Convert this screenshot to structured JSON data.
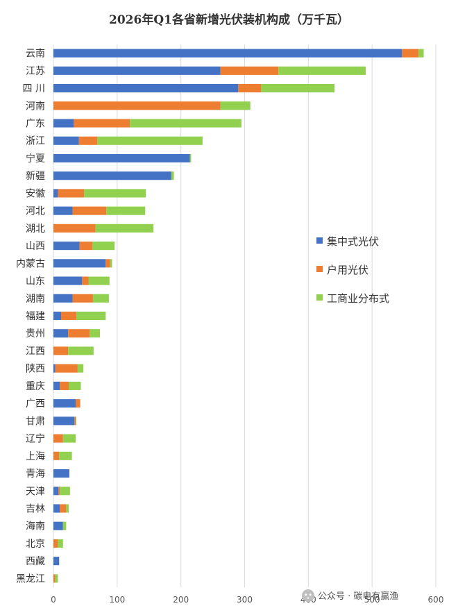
{
  "watermark": {
    "text": "公众号 · 碳电有赢渔",
    "icon": "wechat-icon"
  },
  "chart_data": {
    "type": "bar",
    "orientation": "horizontal",
    "stacked": true,
    "title": "2026年Q1各省新增光伏装机构成（万千瓦）",
    "xlabel": "",
    "ylabel": "",
    "xlim": [
      0,
      600
    ],
    "xticks": [
      0,
      100,
      200,
      300,
      400,
      500,
      600
    ],
    "grid": "vertical",
    "legend_position": "right",
    "categories": [
      "云南",
      "江苏",
      "四 川",
      "河南",
      "广东",
      "浙江",
      "宁夏",
      "新疆",
      "安徽",
      "河北",
      "湖北",
      "山西",
      "内蒙古",
      "山东",
      "湖南",
      "福建",
      "贵州",
      "江西",
      "陕西",
      "重庆",
      "广西",
      "甘肃",
      "辽宁",
      "上海",
      "青海",
      "天津",
      "吉林",
      "海南",
      "北京",
      "西藏",
      "黑龙江"
    ],
    "series": [
      {
        "name": "集中式光伏",
        "color": "#4472C4",
        "values": [
          547,
          262,
          290,
          0,
          32,
          40,
          214,
          185,
          7,
          30,
          0,
          41,
          82,
          45,
          30,
          12,
          23,
          0,
          3,
          10,
          35,
          33,
          0,
          0,
          25,
          8,
          10,
          15,
          0,
          9,
          0
        ]
      },
      {
        "name": "户用光伏",
        "color": "#ED7D31",
        "values": [
          26,
          91,
          36,
          262,
          88,
          29,
          0,
          0,
          41,
          53,
          66,
          20,
          7,
          10,
          32,
          24,
          34,
          23,
          35,
          14,
          7,
          2,
          15,
          9,
          0,
          2,
          10,
          0,
          7,
          0,
          3
        ]
      },
      {
        "name": "工商业分布式",
        "color": "#92D050",
        "values": [
          8,
          137,
          115,
          47,
          175,
          165,
          2,
          4,
          97,
          61,
          91,
          35,
          3,
          33,
          25,
          46,
          16,
          40,
          9,
          19,
          0,
          1,
          20,
          20,
          0,
          16,
          4,
          5,
          8,
          0,
          4
        ]
      }
    ]
  }
}
